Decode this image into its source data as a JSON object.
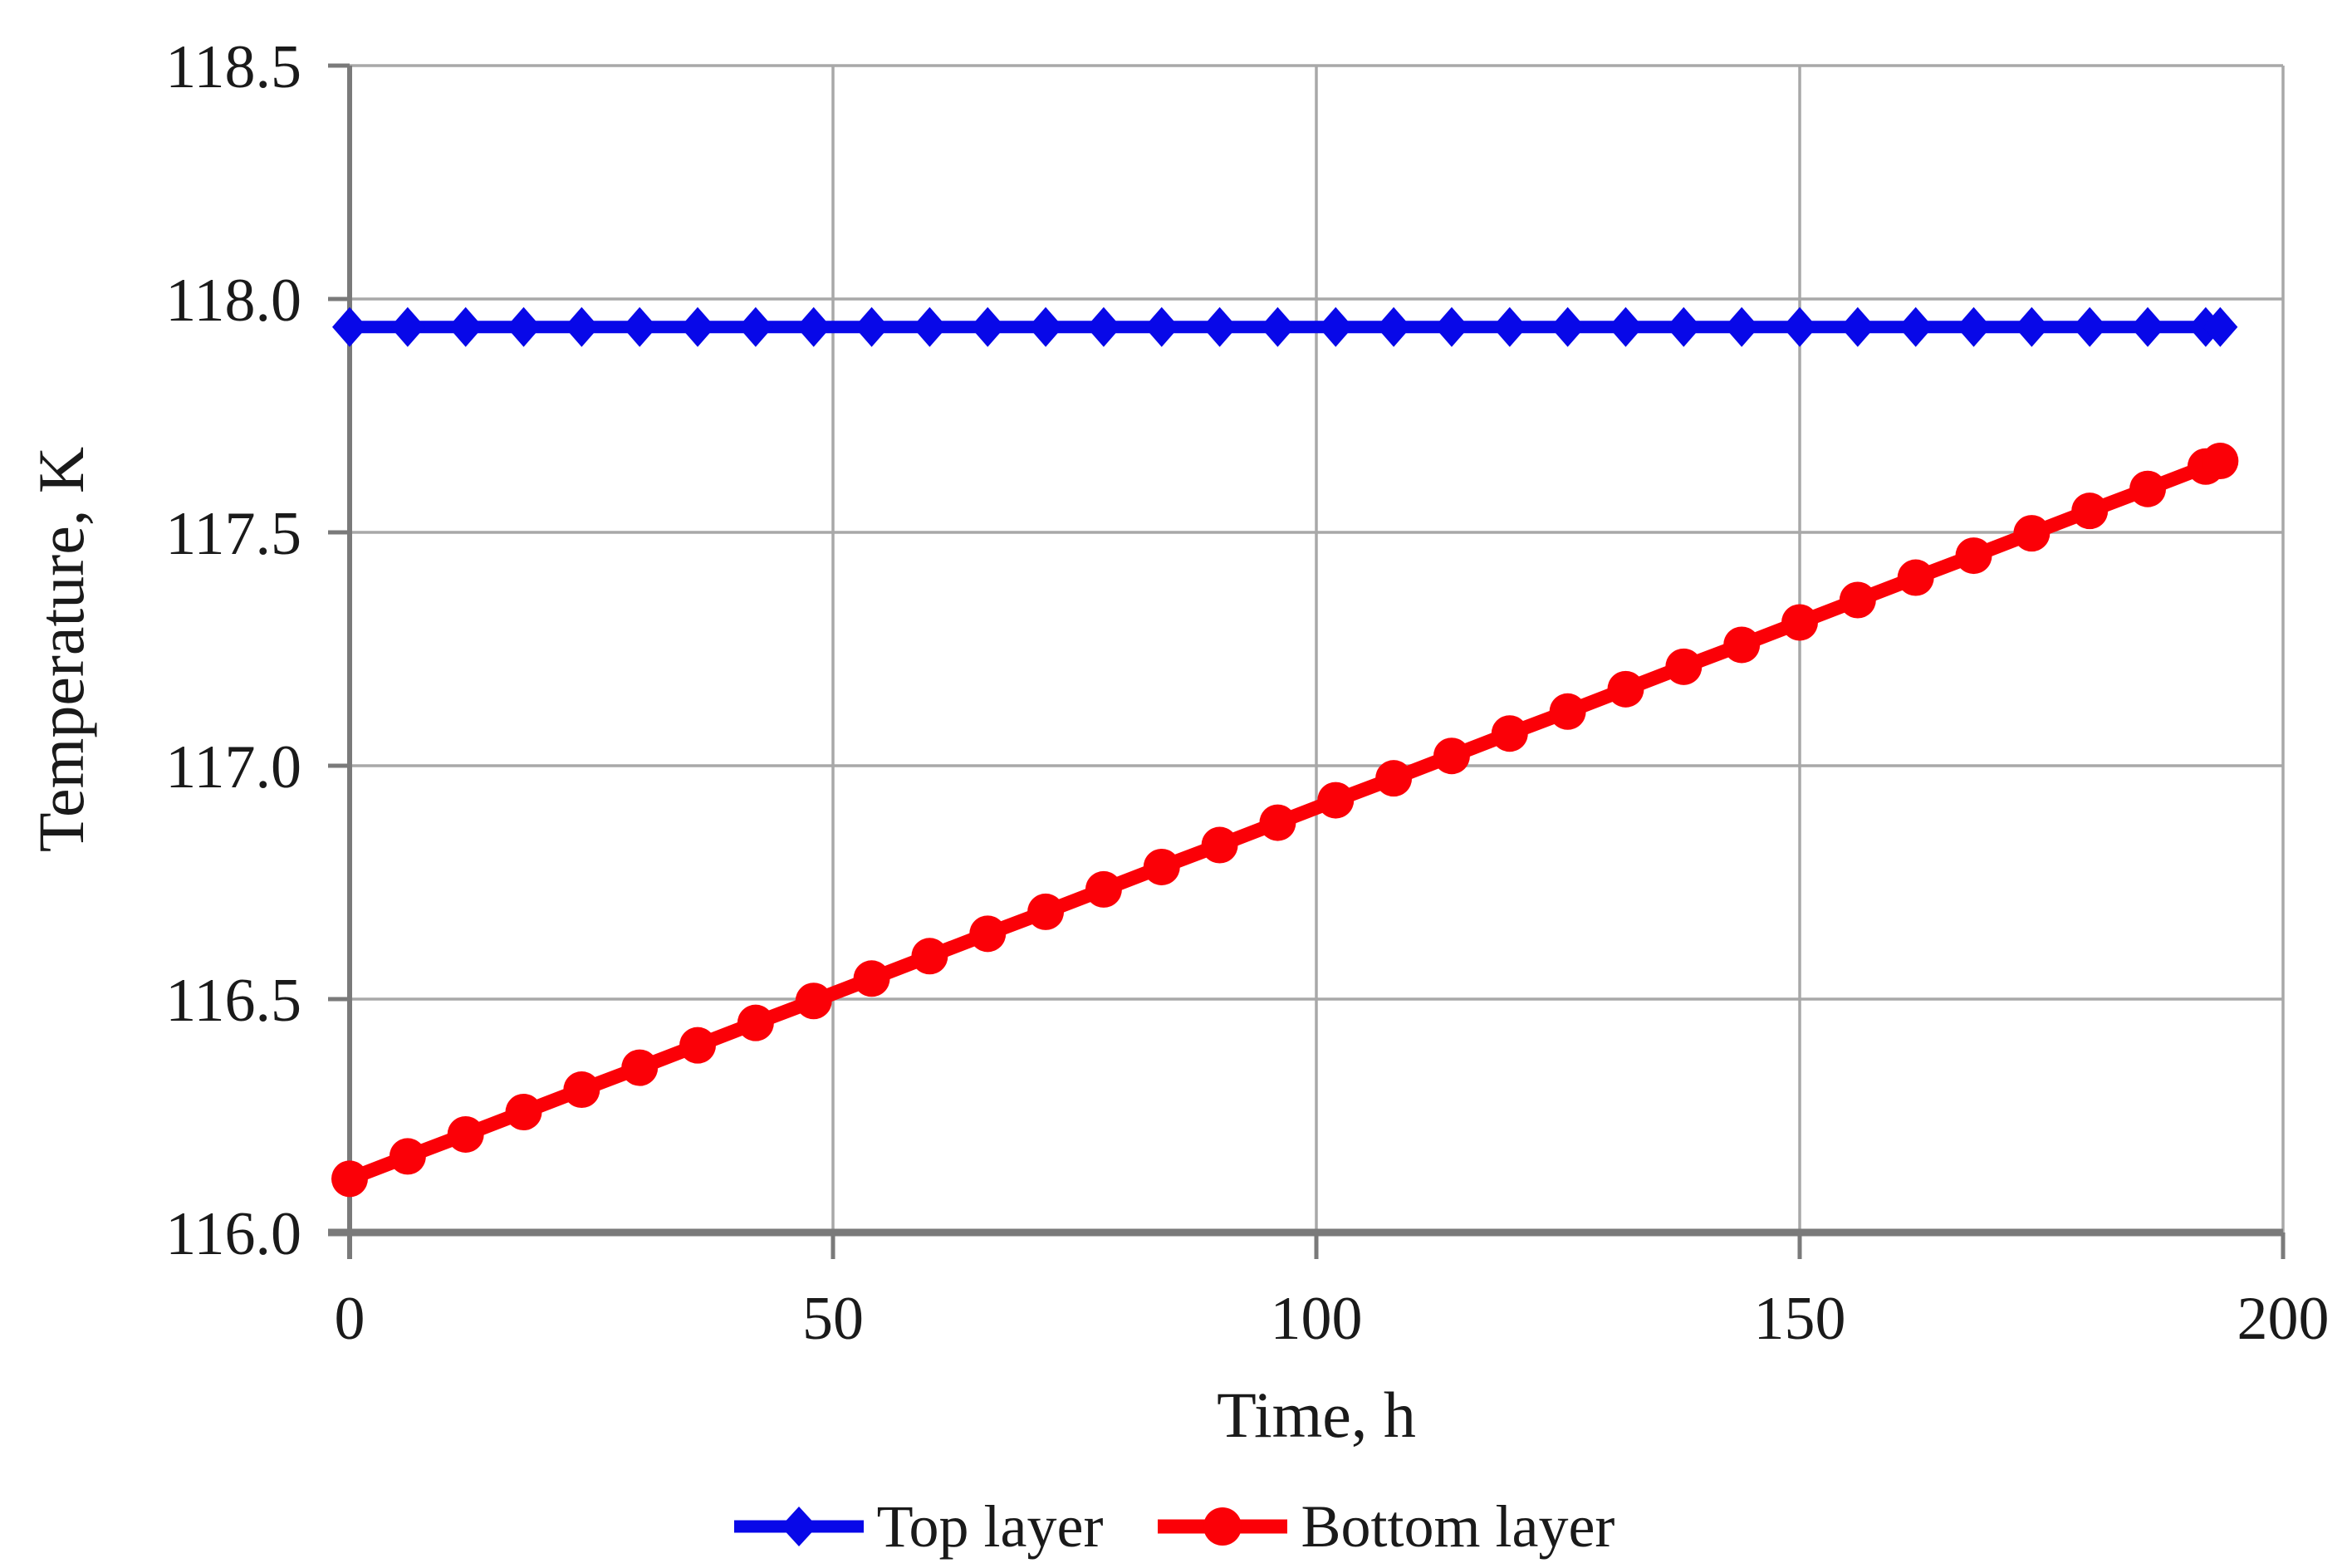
{
  "chart_data": {
    "type": "line",
    "title": "",
    "xlabel": "Time, h",
    "ylabel": "Temperature,  K",
    "xlim": [
      0,
      200
    ],
    "ylim": [
      116.0,
      118.5
    ],
    "x_ticks": [
      0,
      50,
      100,
      150,
      200
    ],
    "y_ticks": [
      116.0,
      116.5,
      117.0,
      117.5,
      118.0,
      118.5
    ],
    "grid": true,
    "legend_position": "bottom-center",
    "background_color": "#ffffff",
    "gridline_color": "#a8a8a8",
    "axis_color": "#7a7a7a",
    "text_color": "#1a1a1a",
    "x": [
      0,
      6,
      12,
      18,
      24,
      30,
      36,
      42,
      48,
      54,
      60,
      66,
      72,
      78,
      84,
      90,
      96,
      102,
      108,
      114,
      120,
      126,
      132,
      138,
      144,
      150,
      156,
      162,
      168,
      174,
      180,
      186,
      192,
      193.5
    ],
    "series": [
      {
        "name": "Top layer",
        "color": "#0808e8",
        "marker": "diamond",
        "values": [
          117.94,
          117.94,
          117.94,
          117.94,
          117.94,
          117.94,
          117.94,
          117.94,
          117.94,
          117.94,
          117.94,
          117.94,
          117.94,
          117.94,
          117.94,
          117.94,
          117.94,
          117.94,
          117.94,
          117.94,
          117.94,
          117.94,
          117.94,
          117.94,
          117.94,
          117.94,
          117.94,
          117.94,
          117.94,
          117.94,
          117.94,
          117.94,
          117.94,
          117.94
        ]
      },
      {
        "name": "Bottom layer",
        "color": "#fb0007",
        "marker": "circle",
        "values": [
          116.115,
          116.163,
          116.21,
          116.258,
          116.306,
          116.353,
          116.401,
          116.449,
          116.496,
          116.544,
          116.592,
          116.64,
          116.687,
          116.735,
          116.783,
          116.83,
          116.878,
          116.926,
          116.973,
          117.021,
          117.069,
          117.116,
          117.164,
          117.212,
          117.259,
          117.307,
          117.355,
          117.403,
          117.45,
          117.498,
          117.546,
          117.593,
          117.641,
          117.653
        ]
      }
    ]
  }
}
